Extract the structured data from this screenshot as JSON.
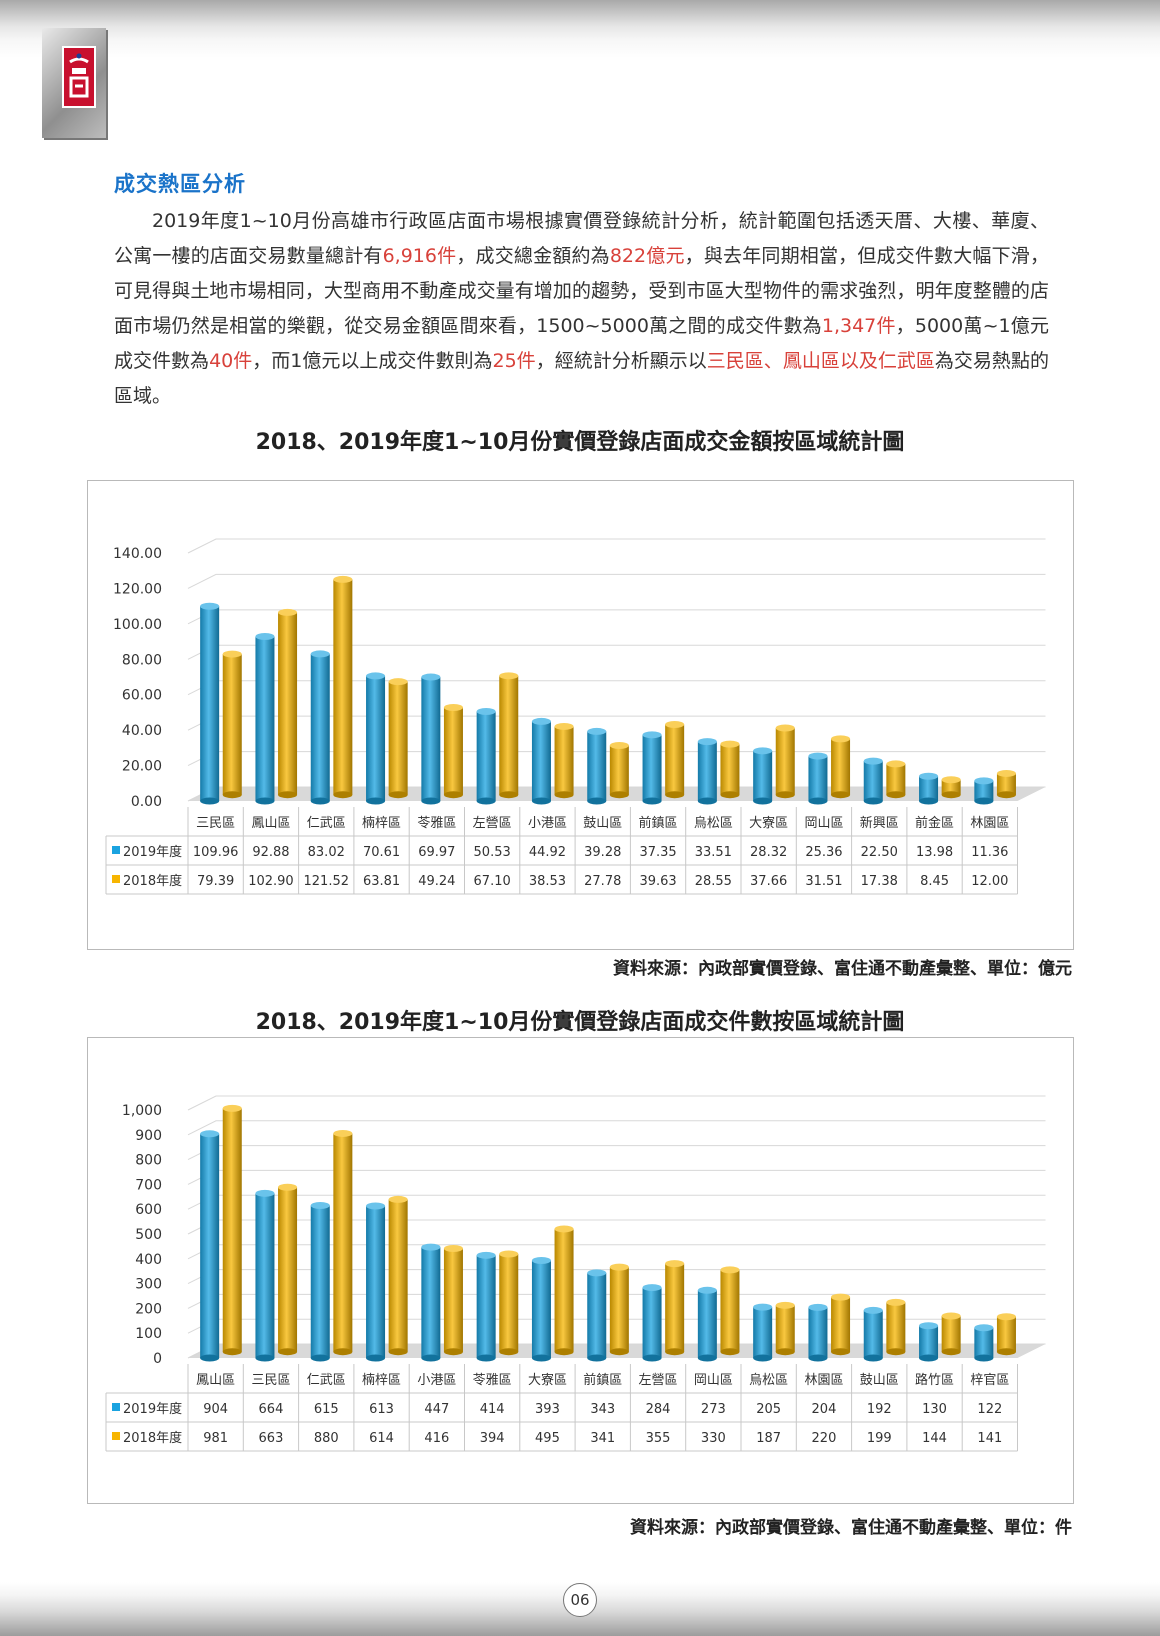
{
  "header": {
    "logo": "company-logo-icon"
  },
  "section": {
    "title": "成交熱區分析",
    "paragraph": [
      {
        "t": "2019年度1~10月份高雄市行政區店面市場根據實價登錄統計分析，統計範圍包括透天厝、大樓、華廈、公寓一樓的店面交易數量總計有"
      },
      {
        "t": "6,916件",
        "hl": true
      },
      {
        "t": "，成交總金額約為"
      },
      {
        "t": "822億元",
        "hl": true
      },
      {
        "t": "，與去年同期相當，但成交件數大幅下滑，可見得與土地市場相同，大型商用不動產成交量有增加的趨勢，受到市區大型物件的需求強烈，明年度整體的店面市場仍然是相當的樂觀，從交易金額區間來看，1500~5000萬之間的成交件數為"
      },
      {
        "t": "1,347件",
        "hl": true
      },
      {
        "t": "，5000萬~1億元成交件數為"
      },
      {
        "t": "40件",
        "hl": true
      },
      {
        "t": "，而1億元以上成交件數則為"
      },
      {
        "t": "25件",
        "hl": true
      },
      {
        "t": "，經統計分析顯示以"
      },
      {
        "t": "三民區、鳳山區以及仁武區",
        "hl": true
      },
      {
        "t": "為交易熱點的區域。"
      }
    ]
  },
  "chart_data": [
    {
      "type": "bar",
      "title": "2018、2019年度1~10月份實價登錄店面成交金額按區域統計圖",
      "categories": [
        "三民區",
        "鳳山區",
        "仁武區",
        "楠梓區",
        "苓雅區",
        "左營區",
        "小港區",
        "鼓山區",
        "前鎮區",
        "烏松區",
        "大寮區",
        "岡山區",
        "新興區",
        "前金區",
        "林園區"
      ],
      "series": [
        {
          "name": "2019年度",
          "color": "#1aa3e0",
          "values": [
            109.96,
            92.88,
            83.02,
            70.61,
            69.97,
            50.53,
            44.92,
            39.28,
            37.35,
            33.51,
            28.32,
            25.36,
            22.5,
            13.98,
            11.36
          ]
        },
        {
          "name": "2018年度",
          "color": "#f7b500",
          "values": [
            79.39,
            102.9,
            121.52,
            63.81,
            49.24,
            67.1,
            38.53,
            27.78,
            39.63,
            28.55,
            37.66,
            31.51,
            17.38,
            8.45,
            12.0
          ]
        }
      ],
      "yticks": [
        "0.00",
        "20.00",
        "40.00",
        "60.00",
        "80.00",
        "100.00",
        "120.00",
        "140.00"
      ],
      "ylim": [
        0,
        140
      ],
      "value_format": "2dp",
      "source": "資料來源：內政部實價登錄、富住通不動產彙整、單位：億元"
    },
    {
      "type": "bar",
      "title": "2018、2019年度1~10月份實價登錄店面成交件數按區域統計圖",
      "categories": [
        "鳳山區",
        "三民區",
        "仁武區",
        "楠梓區",
        "小港區",
        "苓雅區",
        "大寮區",
        "前鎮區",
        "左營區",
        "岡山區",
        "烏松區",
        "林園區",
        "鼓山區",
        "路竹區",
        "梓官區"
      ],
      "series": [
        {
          "name": "2019年度",
          "color": "#1aa3e0",
          "values": [
            904,
            664,
            615,
            613,
            447,
            414,
            393,
            343,
            284,
            273,
            205,
            204,
            192,
            130,
            122
          ]
        },
        {
          "name": "2018年度",
          "color": "#f7b500",
          "values": [
            981,
            663,
            880,
            614,
            416,
            394,
            495,
            341,
            355,
            330,
            187,
            220,
            199,
            144,
            141
          ]
        }
      ],
      "yticks": [
        "0",
        "100",
        "200",
        "300",
        "400",
        "500",
        "600",
        "700",
        "800",
        "900",
        "1,000"
      ],
      "ylim": [
        0,
        1000
      ],
      "value_format": "int",
      "source": "資料來源：內政部實價登錄、富住通不動產彙整、單位：件"
    }
  ],
  "footer": {
    "page": "06"
  }
}
